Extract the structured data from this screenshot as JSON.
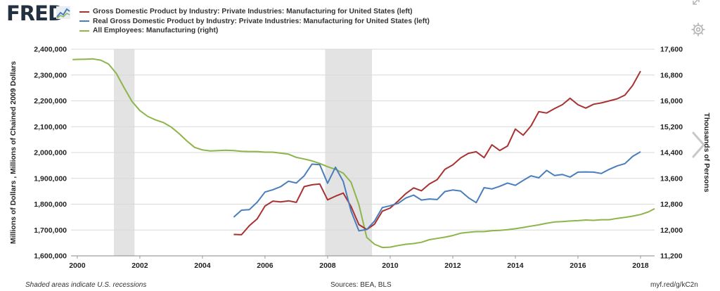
{
  "header": {
    "logo_text": "FRED",
    "logo_icon": "line-graph-icon",
    "top_icons": [
      "expand-icon",
      "settings-gear-icon",
      "next-chevron-icon"
    ]
  },
  "colors": {
    "gdp": "#a83232",
    "real_gdp": "#4a7ebb",
    "employees": "#8db54b",
    "recession": "#e3e3e3",
    "grid": "#d9d9d9"
  },
  "footer": {
    "left": "Shaded areas indicate U.S. recessions",
    "center": "Sources: BEA, BLS",
    "right": "myf.red/g/kC2n"
  },
  "chart_data": {
    "type": "line",
    "title": "",
    "xlabel": "",
    "ylabel_left": "Millions of Dollars , Millions of Chained 2009 Dollars",
    "ylabel_right": "Thousands of Persons",
    "xlim": [
      1999.8,
      2018.45
    ],
    "ylim_left": [
      1600000,
      2400000
    ],
    "ylim_right": [
      11200,
      17600
    ],
    "x_ticks": [
      2000,
      2002,
      2004,
      2006,
      2008,
      2010,
      2012,
      2014,
      2016,
      2018
    ],
    "x_tick_labels": [
      "2000",
      "2002",
      "2004",
      "2006",
      "2008",
      "2010",
      "2012",
      "2014",
      "2016",
      "2018"
    ],
    "y_ticks_left": [
      1600000,
      1700000,
      1800000,
      1900000,
      2000000,
      2100000,
      2200000,
      2300000,
      2400000
    ],
    "y_tick_labels_left": [
      "1,600,000",
      "1,700,000",
      "1,800,000",
      "1,900,000",
      "2,000,000",
      "2,100,000",
      "2,200,000",
      "2,300,000",
      "2,400,000"
    ],
    "y_ticks_right": [
      11200,
      12000,
      12800,
      13600,
      14400,
      15200,
      16000,
      16800,
      17600
    ],
    "y_tick_labels_right": [
      "11,200",
      "12,000",
      "12,800",
      "13,600",
      "14,400",
      "15,200",
      "16,000",
      "16,800",
      "17,600"
    ],
    "recessions": [
      [
        2001.17,
        2001.83
      ],
      [
        2007.92,
        2009.42
      ]
    ],
    "legend": [
      "Gross Domestic Product by Industry: Private Industries: Manufacturing for United States (left)",
      "Real Gross Domestic Product by Industry: Private Industries: Manufacturing for United States (left)",
      "All Employees: Manufacturing (right)"
    ],
    "series": [
      {
        "name": "Gross Domestic Product by Industry: Private Industries: Manufacturing for United States (left)",
        "axis": "left",
        "x": [
          2005.0,
          2005.25,
          2005.5,
          2005.75,
          2006.0,
          2006.25,
          2006.5,
          2006.75,
          2007.0,
          2007.25,
          2007.5,
          2007.75,
          2008.0,
          2008.25,
          2008.5,
          2008.75,
          2009.0,
          2009.25,
          2009.5,
          2009.75,
          2010.0,
          2010.25,
          2010.5,
          2010.75,
          2011.0,
          2011.25,
          2011.5,
          2011.75,
          2012.0,
          2012.25,
          2012.5,
          2012.75,
          2013.0,
          2013.25,
          2013.5,
          2013.75,
          2014.0,
          2014.25,
          2014.5,
          2014.75,
          2015.0,
          2015.25,
          2015.5,
          2015.75,
          2016.0,
          2016.25,
          2016.5,
          2016.75,
          2017.0,
          2017.25,
          2017.5,
          2017.75,
          2018.0
        ],
        "values": [
          1683000,
          1682000,
          1717000,
          1743000,
          1793000,
          1812000,
          1809000,
          1813000,
          1807000,
          1868000,
          1875000,
          1878000,
          1817000,
          1831000,
          1843000,
          1791000,
          1721000,
          1702000,
          1723000,
          1773000,
          1785000,
          1812000,
          1841000,
          1863000,
          1852000,
          1878000,
          1895000,
          1935000,
          1952000,
          1979000,
          1997000,
          2003000,
          1980000,
          2030000,
          2008000,
          2025000,
          2091000,
          2067000,
          2103000,
          2158000,
          2153000,
          2170000,
          2185000,
          2210000,
          2185000,
          2172000,
          2187000,
          2192000,
          2200000,
          2208000,
          2222000,
          2260000,
          2315000
        ],
        "color": "#a83232"
      },
      {
        "name": "Real Gross Domestic Product by Industry: Private Industries: Manufacturing for United States (left)",
        "axis": "left",
        "x": [
          2005.0,
          2005.25,
          2005.5,
          2005.75,
          2006.0,
          2006.25,
          2006.5,
          2006.75,
          2007.0,
          2007.25,
          2007.5,
          2007.75,
          2008.0,
          2008.25,
          2008.5,
          2008.75,
          2009.0,
          2009.25,
          2009.5,
          2009.75,
          2010.0,
          2010.25,
          2010.5,
          2010.75,
          2011.0,
          2011.25,
          2011.5,
          2011.75,
          2012.0,
          2012.25,
          2012.5,
          2012.75,
          2013.0,
          2013.25,
          2013.5,
          2013.75,
          2014.0,
          2014.25,
          2014.5,
          2014.75,
          2015.0,
          2015.25,
          2015.5,
          2015.75,
          2016.0,
          2016.25,
          2016.5,
          2016.75,
          2017.0,
          2017.25,
          2017.5,
          2017.75,
          2018.0
        ],
        "values": [
          1750000,
          1777000,
          1779000,
          1808000,
          1847000,
          1856000,
          1868000,
          1889000,
          1882000,
          1910000,
          1955000,
          1953000,
          1881000,
          1943000,
          1888000,
          1773000,
          1697000,
          1702000,
          1735000,
          1787000,
          1794000,
          1803000,
          1824000,
          1835000,
          1816000,
          1820000,
          1818000,
          1849000,
          1855000,
          1851000,
          1825000,
          1806000,
          1864000,
          1859000,
          1869000,
          1882000,
          1873000,
          1892000,
          1910000,
          1902000,
          1931000,
          1911000,
          1915000,
          1905000,
          1924000,
          1925000,
          1924000,
          1919000,
          1935000,
          1948000,
          1957000,
          1985000,
          2003000
        ],
        "color": "#4a7ebb"
      },
      {
        "name": "All Employees: Manufacturing (right)",
        "axis": "right",
        "x": [
          1999.85,
          2000.0,
          2000.25,
          2000.5,
          2000.75,
          2001.0,
          2001.25,
          2001.5,
          2001.75,
          2002.0,
          2002.25,
          2002.5,
          2002.75,
          2003.0,
          2003.25,
          2003.5,
          2003.75,
          2004.0,
          2004.25,
          2004.5,
          2004.75,
          2005.0,
          2005.25,
          2005.5,
          2005.75,
          2006.0,
          2006.25,
          2006.5,
          2006.75,
          2007.0,
          2007.25,
          2007.5,
          2007.75,
          2008.0,
          2008.25,
          2008.5,
          2008.75,
          2009.0,
          2009.25,
          2009.5,
          2009.75,
          2010.0,
          2010.25,
          2010.5,
          2010.75,
          2011.0,
          2011.25,
          2011.5,
          2011.75,
          2012.0,
          2012.25,
          2012.5,
          2012.75,
          2013.0,
          2013.25,
          2013.5,
          2013.75,
          2014.0,
          2014.25,
          2014.5,
          2014.75,
          2015.0,
          2015.25,
          2015.5,
          2015.75,
          2016.0,
          2016.25,
          2016.5,
          2016.75,
          2017.0,
          2017.25,
          2017.5,
          2017.75,
          2018.0,
          2018.25,
          2018.45
        ],
        "values": [
          17280,
          17285,
          17290,
          17300,
          17260,
          17140,
          16850,
          16400,
          15980,
          15700,
          15520,
          15410,
          15330,
          15190,
          14990,
          14760,
          14560,
          14480,
          14450,
          14460,
          14470,
          14460,
          14440,
          14430,
          14430,
          14410,
          14410,
          14380,
          14350,
          14250,
          14200,
          14140,
          14060,
          13960,
          13880,
          13760,
          13480,
          12790,
          11770,
          11560,
          11460,
          11470,
          11520,
          11560,
          11580,
          11620,
          11700,
          11740,
          11780,
          11830,
          11900,
          11930,
          11950,
          11950,
          11980,
          11990,
          12010,
          12040,
          12080,
          12120,
          12160,
          12210,
          12250,
          12260,
          12280,
          12290,
          12310,
          12300,
          12320,
          12320,
          12360,
          12390,
          12430,
          12480,
          12560,
          12660
        ],
        "color": "#8db54b"
      }
    ]
  }
}
